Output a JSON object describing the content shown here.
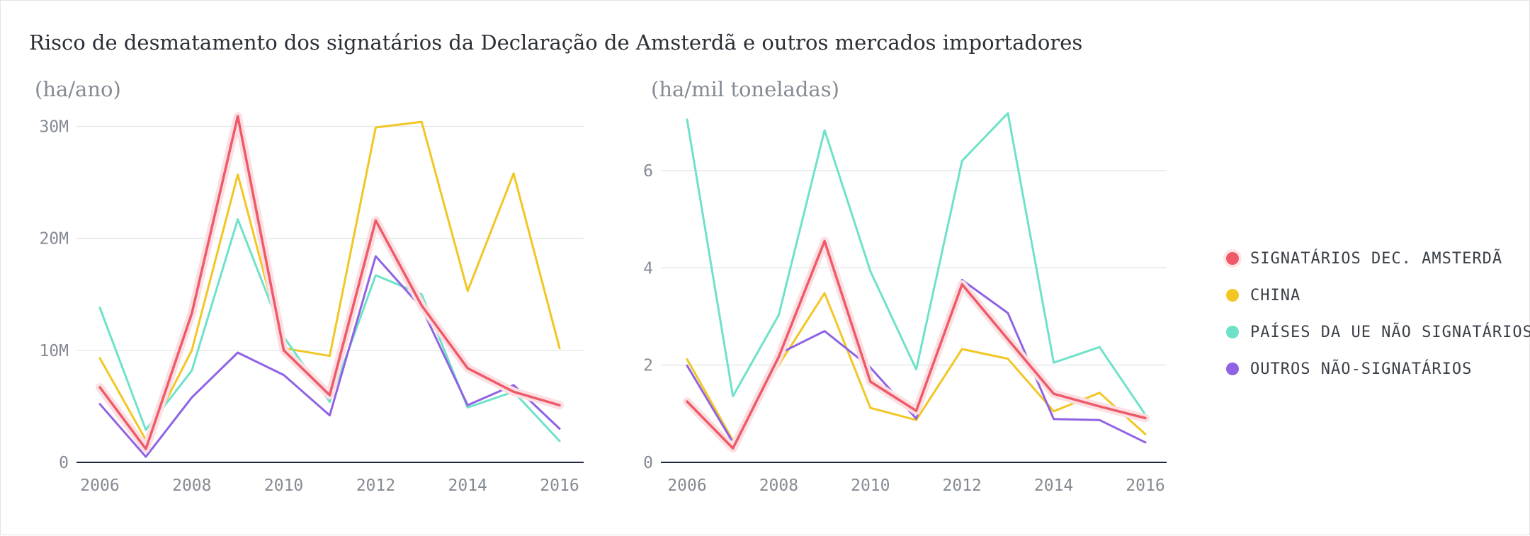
{
  "title": "Risco de desmatamento dos signatários da Declaração de Amsterdã e outros mercados importadores",
  "legend": {
    "items": [
      {
        "label": "SIGNATÁRIOS DEC. AMSTERDÃ",
        "color": "#ee5a68"
      },
      {
        "label": "CHINA",
        "color": "#f2c623"
      },
      {
        "label": "PAÍSES DA UE NÃO SIGNATÁRIOS",
        "color": "#6ee2c9"
      },
      {
        "label": "OUTROS NÃO-SIGNATÁRIOS",
        "color": "#8f63e3"
      }
    ]
  },
  "chart_data": [
    {
      "type": "line",
      "title": "",
      "ylabel": "(ha/ano)",
      "xlabel": "",
      "x": [
        2006,
        2007,
        2008,
        2009,
        2010,
        2011,
        2012,
        2013,
        2014,
        2015,
        2016
      ],
      "x_ticks": [
        2006,
        2008,
        2010,
        2012,
        2014,
        2016
      ],
      "x_tick_labels": [
        "2006",
        "2008",
        "2010",
        "2012",
        "2014",
        "2016"
      ],
      "ylim": [
        0,
        33000000
      ],
      "y_ticks": [
        0,
        10000000,
        20000000,
        30000000
      ],
      "y_tick_labels": [
        "0",
        "10M",
        "20M",
        "30M"
      ],
      "grid": true,
      "series": [
        {
          "name": "CHINA",
          "color": "#f2c623",
          "values": [
            9300000,
            2000000,
            10000000,
            25700000,
            10200000,
            9500000,
            29900000,
            30400000,
            15300000,
            25800000,
            10200000
          ]
        },
        {
          "name": "PAÍSES DA UE NÃO SIGNATÁRIOS",
          "color": "#6ee2c9",
          "values": [
            13800000,
            2900000,
            8200000,
            21700000,
            11200000,
            5400000,
            16700000,
            15000000,
            4900000,
            6300000,
            1900000
          ]
        },
        {
          "name": "OUTROS NÃO-SIGNATÁRIOS",
          "color": "#8f63e3",
          "values": [
            5200000,
            500000,
            5800000,
            9800000,
            7800000,
            4200000,
            18400000,
            13800000,
            5100000,
            6900000,
            3000000
          ]
        },
        {
          "name": "SIGNATÁRIOS DEC. AMSTERDÃ",
          "color": "#ee5a68",
          "values": [
            6700000,
            1200000,
            13300000,
            30900000,
            10000000,
            6000000,
            21600000,
            14000000,
            8400000,
            6300000,
            5100000
          ]
        }
      ]
    },
    {
      "type": "line",
      "title": "",
      "ylabel": "(ha/mil toneladas)",
      "xlabel": "",
      "x": [
        2006,
        2007,
        2008,
        2009,
        2010,
        2011,
        2012,
        2013,
        2014,
        2015,
        2016
      ],
      "x_ticks": [
        2006,
        2008,
        2010,
        2012,
        2014,
        2016
      ],
      "x_tick_labels": [
        "2006",
        "2008",
        "2010",
        "2012",
        "2014",
        "2016"
      ],
      "ylim": [
        0,
        7.6
      ],
      "y_ticks": [
        0,
        2,
        4,
        6
      ],
      "y_tick_labels": [
        "0",
        "2",
        "4",
        "6"
      ],
      "grid": true,
      "series": [
        {
          "name": "CHINA",
          "color": "#f2c623",
          "values": [
            2.12,
            0.45,
            2.0,
            3.48,
            1.12,
            0.87,
            2.33,
            2.13,
            1.05,
            1.43,
            0.58
          ]
        },
        {
          "name": "PAÍSES DA UE NÃO SIGNATÁRIOS",
          "color": "#6ee2c9",
          "values": [
            7.05,
            1.36,
            3.03,
            6.83,
            3.93,
            1.91,
            6.2,
            7.18,
            2.05,
            2.37,
            0.98
          ]
        },
        {
          "name": "OUTROS NÃO-SIGNATÁRIOS",
          "color": "#8f63e3",
          "values": [
            1.99,
            0.41,
            2.23,
            2.7,
            1.95,
            0.9,
            3.75,
            3.07,
            0.89,
            0.87,
            0.41
          ]
        },
        {
          "name": "SIGNATÁRIOS DEC. AMSTERDÃ",
          "color": "#ee5a68",
          "values": [
            1.25,
            0.29,
            2.17,
            4.55,
            1.66,
            1.06,
            3.66,
            2.53,
            1.41,
            1.15,
            0.91
          ]
        }
      ]
    }
  ]
}
